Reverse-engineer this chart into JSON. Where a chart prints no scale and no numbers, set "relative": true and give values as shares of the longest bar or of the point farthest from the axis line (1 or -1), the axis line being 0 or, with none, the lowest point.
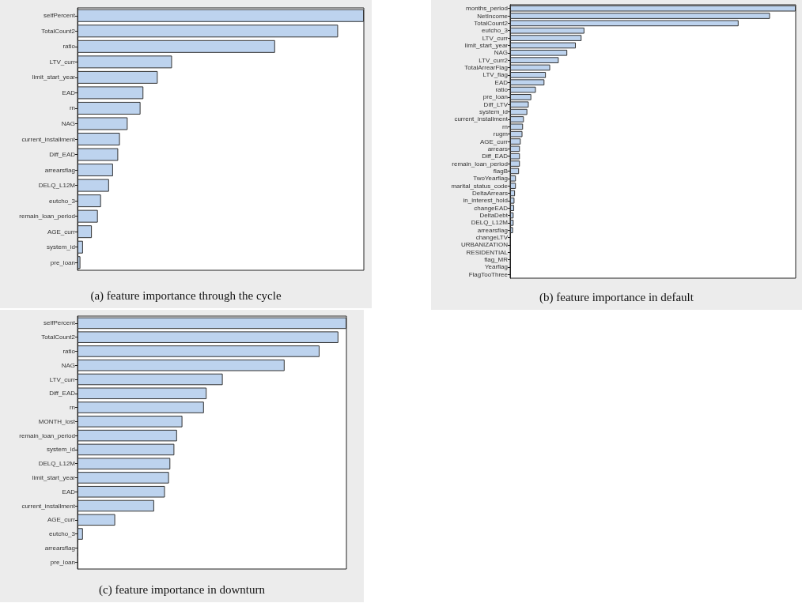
{
  "chart_data": [
    {
      "type": "bar",
      "orientation": "horizontal",
      "relative": true,
      "color": "#bdd3ee",
      "title": "(a) feature importance through the cycle",
      "categories": [
        "selfPercent",
        "TotalCount2",
        "ratio",
        "LTV_curr",
        "limit_start_year",
        "EAD",
        "rn",
        "NAG",
        "current_installment",
        "Diff_EAD",
        "arrearsflag",
        "DELQ_L12M",
        "eutcho_3",
        "remain_loan_period",
        "AGE_curr",
        "system_id",
        "pre_loan"
      ],
      "values": [
        1,
        0.91,
        0.69,
        0.33,
        0.28,
        0.23,
        0.22,
        0.175,
        0.148,
        0.142,
        0.124,
        0.11,
        0.082,
        0.071,
        0.05,
        0.019,
        0.01
      ]
    },
    {
      "type": "bar",
      "orientation": "horizontal",
      "relative": true,
      "color": "#bdd3ee",
      "title": "(b) feature importance in default",
      "categories": [
        "months_period",
        "NetIncome",
        "TotalCount2",
        "eutcho_3",
        "LTV_curr",
        "limit_start_year",
        "NAG",
        "LTV_curr2",
        "TotalArrearFlag",
        "LTV_flag",
        "EAD",
        "ratio",
        "pre_loan",
        "Diff_LTV",
        "system_id",
        "current_installment",
        "rn",
        "rugm",
        "AGE_curr",
        "arrears",
        "Diff_EAD",
        "remain_loan_period",
        "flagB",
        "TwoYearflag",
        "marital_status_code",
        "DeltaArrears",
        "in_interest_hold",
        "changeEAD",
        "DeltaDebt",
        "DELQ_L12M",
        "arrearsflag",
        "changeLTV",
        "URBANIZATION",
        "RESIDENTIAL",
        "flag_MR",
        "Yearflag",
        "FlagTooThree"
      ],
      "values": [
        1,
        0.91,
        0.8,
        0.26,
        0.25,
        0.23,
        0.2,
        0.17,
        0.14,
        0.125,
        0.12,
        0.09,
        0.074,
        0.065,
        0.06,
        0.048,
        0.045,
        0.043,
        0.037,
        0.034,
        0.034,
        0.034,
        0.031,
        0.02,
        0.02,
        0.017,
        0.015,
        0.014,
        0.012,
        0.012,
        0.01,
        0,
        0,
        0,
        0,
        0,
        0
      ]
    },
    {
      "type": "bar",
      "orientation": "horizontal",
      "relative": true,
      "color": "#bdd3ee",
      "title": "(c) feature importance in downturn",
      "categories": [
        "selfPercent",
        "TotalCount2",
        "ratio",
        "NAG",
        "LTV_curr",
        "Diff_EAD",
        "rn",
        "MONTH_lost",
        "remain_loan_period",
        "system_id",
        "DELQ_L12M",
        "limit_start_year",
        "EAD",
        "current_installment",
        "AGE_curr",
        "eutcho_3",
        "arrearsflag",
        "pre_loan"
      ],
      "values": [
        1,
        0.97,
        0.9,
        0.77,
        0.54,
        0.48,
        0.47,
        0.39,
        0.37,
        0.36,
        0.345,
        0.34,
        0.325,
        0.285,
        0.14,
        0.02,
        0.003,
        0.003
      ]
    }
  ]
}
